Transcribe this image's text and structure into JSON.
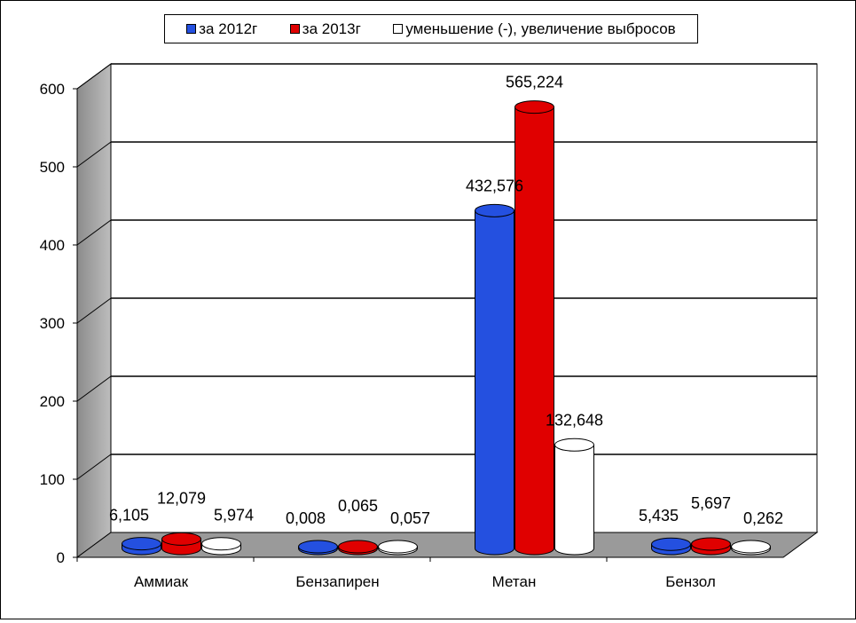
{
  "chart_data": {
    "type": "bar",
    "categories": [
      "Аммиак",
      "Бензапирен",
      "Метан",
      "Бензол"
    ],
    "series": [
      {
        "name": "за 2012г",
        "color": "#2450e0",
        "values": [
          6.105,
          0.008,
          432.576,
          5.435
        ],
        "labels": [
          "6,105",
          "0,008",
          "432,576",
          "5,435"
        ]
      },
      {
        "name": "за 2013г",
        "color": "#e00000",
        "values": [
          12.079,
          0.065,
          565.224,
          5.697
        ],
        "labels": [
          "12,079",
          "0,065",
          "565,224",
          "5,697"
        ]
      },
      {
        "name": "уменьшение (-), увеличение выбросов",
        "color": "#ffffff",
        "values": [
          5.974,
          0.057,
          132.648,
          0.262
        ],
        "labels": [
          "5,974",
          "0,057",
          "132,648",
          "0,262"
        ]
      }
    ],
    "yticks": [
      "0",
      "100",
      "200",
      "300",
      "400",
      "500",
      "600"
    ],
    "ylim": [
      0,
      600
    ],
    "grid": true,
    "legend": "top",
    "bar_shape": "cylinder-3d"
  }
}
